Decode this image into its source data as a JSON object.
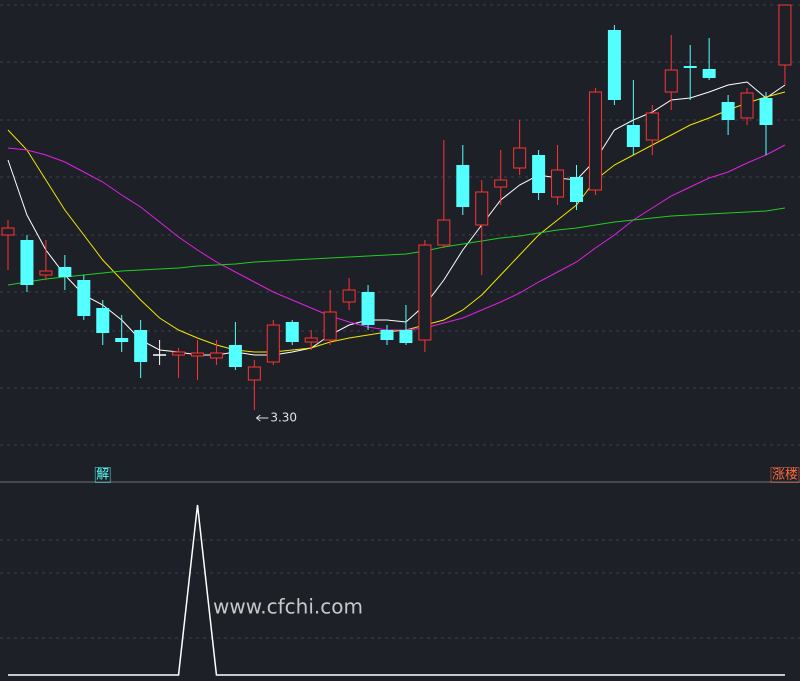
{
  "chart_data": [
    {
      "type": "candlestick",
      "up_color": "#ff3333",
      "down_color": "#54ffff",
      "flat_color": "#ffffff",
      "ylim": [
        3.075,
        5.35
      ],
      "open": [
        4.175,
        4.15,
        3.975,
        4.015,
        3.95,
        3.81,
        3.66,
        3.7,
        3.575,
        3.575,
        3.57,
        3.56,
        3.625,
        3.45,
        3.54,
        3.74,
        3.64,
        3.65,
        3.84,
        3.89,
        3.7,
        3.7,
        3.65,
        4.125,
        4.525,
        4.225,
        4.415,
        4.51,
        4.575,
        4.365,
        4.465,
        4.4,
        5.2,
        4.725,
        4.65,
        4.89,
        5.02,
        5.005,
        4.84,
        4.76,
        4.86,
        5.025
      ],
      "high": [
        4.25,
        4.175,
        4.15,
        4.075,
        3.975,
        3.85,
        3.775,
        3.75,
        3.65,
        3.61,
        3.65,
        3.65,
        3.74,
        3.55,
        3.75,
        3.75,
        3.7,
        3.9,
        3.96,
        3.925,
        3.725,
        3.825,
        4.15,
        4.65,
        4.625,
        4.45,
        4.6,
        4.75,
        4.6,
        4.625,
        4.525,
        4.91,
        5.225,
        4.95,
        4.825,
        5.175,
        5.125,
        5.16,
        4.875,
        4.91,
        4.89,
        5.325
      ],
      "low": [
        4.0,
        3.89,
        3.95,
        3.9,
        3.75,
        3.625,
        3.59,
        3.46,
        3.525,
        3.46,
        3.45,
        3.525,
        3.5,
        3.3,
        3.525,
        3.625,
        3.6,
        3.625,
        3.8,
        3.7,
        3.625,
        3.625,
        3.59,
        4.11,
        4.275,
        3.975,
        4.325,
        4.475,
        4.35,
        4.325,
        4.3,
        4.375,
        4.825,
        4.575,
        4.575,
        4.8,
        4.85,
        4.95,
        4.675,
        4.725,
        4.575,
        4.925
      ],
      "close": [
        4.21,
        3.925,
        3.995,
        3.965,
        3.77,
        3.685,
        3.64,
        3.54,
        3.575,
        3.59,
        3.585,
        3.585,
        3.515,
        3.515,
        3.725,
        3.64,
        3.66,
        3.79,
        3.9,
        3.725,
        3.65,
        3.635,
        4.125,
        4.25,
        4.315,
        4.39,
        4.45,
        4.61,
        4.385,
        4.5,
        4.34,
        4.89,
        4.85,
        4.615,
        4.785,
        5.0,
        5.01,
        4.96,
        4.75,
        4.885,
        4.725,
        5.325
      ],
      "lines": [
        {
          "color": "#ffffff",
          "values": [
            4.55,
            4.275,
            4.1,
            3.975,
            3.875,
            3.825,
            3.75,
            3.65,
            3.6,
            3.59,
            3.575,
            3.575,
            3.59,
            3.575,
            3.575,
            3.59,
            3.61,
            3.675,
            3.725,
            3.75,
            3.75,
            3.74,
            3.825,
            3.95,
            4.1,
            4.225,
            4.35,
            4.425,
            4.475,
            4.46,
            4.45,
            4.55,
            4.7,
            4.75,
            4.79,
            4.85,
            4.86,
            4.89,
            4.925,
            4.94,
            4.86,
            4.925
          ]
        },
        {
          "color": "#f2e600",
          "values": [
            4.7,
            4.6,
            4.45,
            4.3,
            4.175,
            4.05,
            3.95,
            3.85,
            3.76,
            3.7,
            3.66,
            3.625,
            3.6,
            3.59,
            3.59,
            3.6,
            3.61,
            3.64,
            3.66,
            3.675,
            3.69,
            3.7,
            3.725,
            3.75,
            3.8,
            3.875,
            3.975,
            4.075,
            4.175,
            4.25,
            4.325,
            4.45,
            4.525,
            4.575,
            4.625,
            4.675,
            4.725,
            4.76,
            4.8,
            4.835,
            4.865,
            4.89
          ]
        },
        {
          "color": "#e020e0",
          "values": [
            4.61,
            4.6,
            4.575,
            4.54,
            4.49,
            4.44,
            4.375,
            4.315,
            4.24,
            4.165,
            4.1,
            4.04,
            3.99,
            3.94,
            3.89,
            3.85,
            3.81,
            3.77,
            3.74,
            3.715,
            3.7,
            3.7,
            3.71,
            3.735,
            3.76,
            3.8,
            3.84,
            3.885,
            3.94,
            3.99,
            4.04,
            4.11,
            4.175,
            4.25,
            4.31,
            4.37,
            4.415,
            4.46,
            4.49,
            4.535,
            4.575,
            4.625
          ]
        },
        {
          "color": "#22cc22",
          "values": [
            3.925,
            3.94,
            3.955,
            3.965,
            3.975,
            3.985,
            3.995,
            4.0,
            4.005,
            4.01,
            4.02,
            4.025,
            4.03,
            4.04,
            4.045,
            4.05,
            4.055,
            4.06,
            4.065,
            4.07,
            4.075,
            4.08,
            4.095,
            4.115,
            4.13,
            4.145,
            4.16,
            4.17,
            4.185,
            4.2,
            4.21,
            4.225,
            4.24,
            4.25,
            4.26,
            4.27,
            4.275,
            4.28,
            4.285,
            4.29,
            4.295,
            4.31
          ]
        }
      ],
      "low_label": {
        "index": 13,
        "value": 3.3,
        "label": "3.30"
      }
    },
    {
      "type": "line",
      "color": "#ffffff",
      "ylim": [
        0,
        1.135
      ],
      "values": [
        0,
        0,
        0,
        0,
        0,
        0,
        0,
        0,
        0,
        0,
        1,
        0,
        0,
        0,
        0,
        0,
        0,
        0,
        0,
        0,
        0,
        0,
        0,
        0,
        0,
        0,
        0,
        0,
        0,
        0,
        0,
        0,
        0,
        0,
        0,
        0,
        0,
        0,
        0,
        0,
        0,
        0
      ],
      "signals": [
        {
          "index": 5,
          "label": "解",
          "color": "#54ffff"
        },
        {
          "index": 41,
          "label": "涨楼",
          "color": "#ff6a3a"
        }
      ]
    }
  ],
  "watermark": "www.cfchi.com"
}
